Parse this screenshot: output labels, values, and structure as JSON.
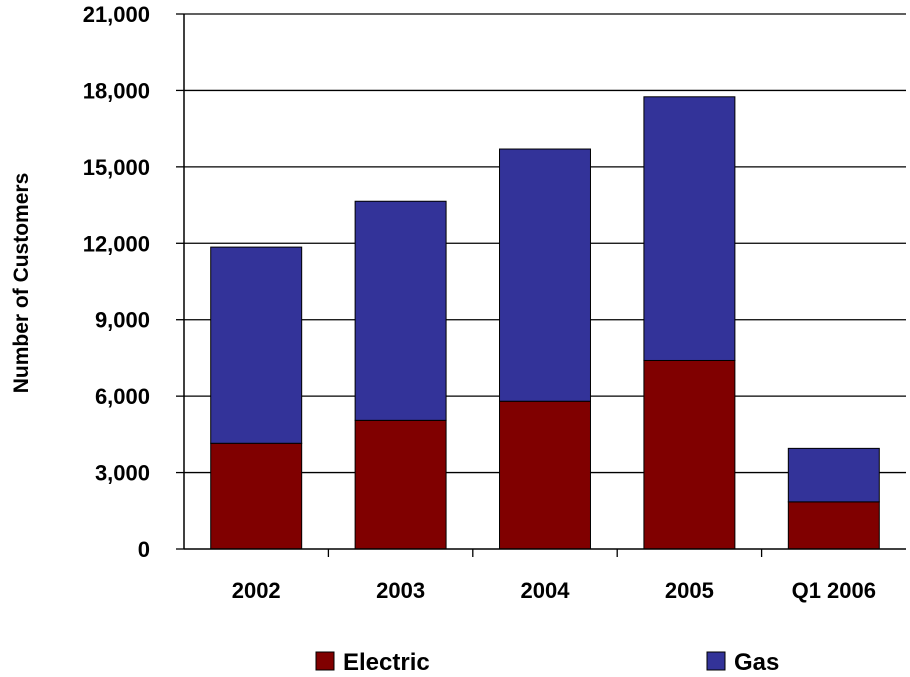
{
  "chart_data": {
    "type": "bar",
    "stacked": true,
    "title": "",
    "xlabel": "",
    "ylabel": "Number of Customers",
    "ylim": [
      0,
      21000
    ],
    "yticks": [
      0,
      3000,
      6000,
      9000,
      12000,
      15000,
      18000,
      21000
    ],
    "ytick_labels": [
      "0",
      "3,000",
      "6,000",
      "9,000",
      "12,000",
      "15,000",
      "18,000",
      "21,000"
    ],
    "categories": [
      "2002",
      "2003",
      "2004",
      "2005",
      "Q1 2006"
    ],
    "series": [
      {
        "name": "Electric",
        "color": "#800000",
        "values": [
          4150,
          5050,
          5800,
          7400,
          1850
        ]
      },
      {
        "name": "Gas",
        "color": "#333399",
        "values": [
          7700,
          8600,
          9900,
          10350,
          2100
        ]
      }
    ],
    "grid": true,
    "legend_position": "bottom"
  }
}
